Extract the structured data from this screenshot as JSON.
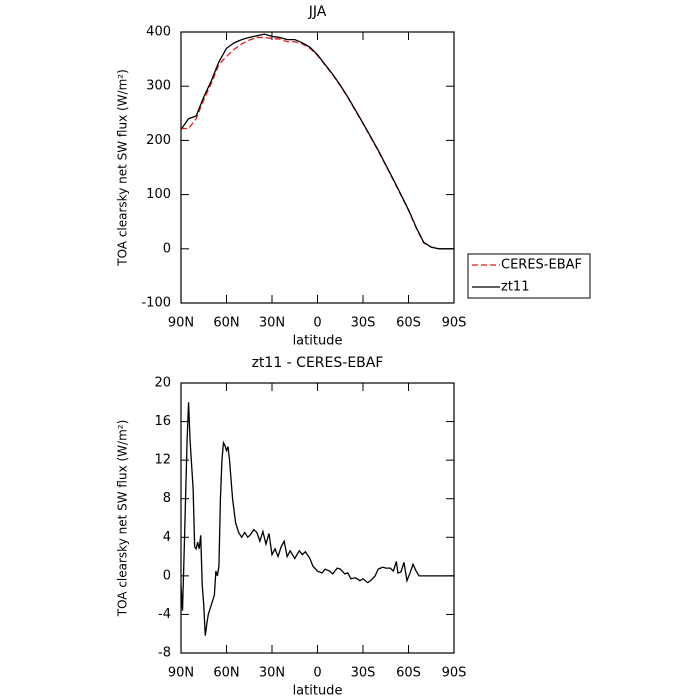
{
  "chart_data": [
    {
      "type": "line",
      "title": "JJA",
      "x_label": "latitude",
      "y_label": "TOA clearsky net SW flux (W/m²)",
      "x": [
        90,
        85,
        80,
        75,
        70,
        65,
        60,
        55,
        50,
        45,
        40,
        35,
        30,
        25,
        20,
        15,
        10,
        5,
        0,
        -5,
        -10,
        -15,
        -20,
        -25,
        -30,
        -35,
        -40,
        -45,
        -50,
        -55,
        -60,
        -65,
        -70,
        -75,
        -80,
        -85,
        -90
      ],
      "series": [
        {
          "name": "CERES-EBAF",
          "color": "#e8191e",
          "linestyle": "dashed",
          "values": [
            222,
            222,
            240,
            275,
            305,
            340,
            355,
            368,
            378,
            385,
            390,
            390,
            388,
            387,
            382,
            382,
            378,
            370,
            357,
            339,
            321,
            301,
            279,
            255,
            231,
            206,
            181,
            154,
            127,
            99,
            71,
            39,
            11,
            3,
            0,
            0,
            0
          ]
        },
        {
          "name": "zt11",
          "color": "#000000",
          "linestyle": "solid",
          "values": [
            220,
            240,
            245,
            280,
            310,
            345,
            370,
            380,
            386,
            390,
            393,
            396,
            392,
            390,
            386,
            386,
            380,
            372,
            358,
            340,
            322,
            302,
            280,
            256,
            232,
            207,
            182,
            155,
            128,
            100,
            72,
            40,
            12,
            3,
            0,
            0,
            0
          ]
        }
      ],
      "xlim": [
        90,
        -90
      ],
      "xticks": [
        {
          "value": 90,
          "label": "90N"
        },
        {
          "value": 60,
          "label": "60N"
        },
        {
          "value": 30,
          "label": "30N"
        },
        0,
        {
          "value": -30,
          "label": "30S"
        },
        {
          "value": -60,
          "label": "60S"
        },
        {
          "value": -90,
          "label": "90S"
        }
      ],
      "ylim": [
        -100,
        400
      ],
      "yticks": [
        -100,
        0,
        100,
        200,
        300,
        400
      ],
      "legend": "right"
    },
    {
      "type": "line",
      "title": "zt11 - CERES-EBAF",
      "x_label": "latitude",
      "y_label": "TOA clearsky net SW flux (W/m²)",
      "x": [
        90,
        89,
        88,
        86,
        85,
        84,
        82,
        81,
        80,
        79,
        78,
        77,
        76,
        75,
        74,
        73,
        72,
        70,
        68,
        67,
        66,
        65,
        64,
        63,
        62,
        61,
        60,
        59,
        58,
        56,
        54,
        52,
        50,
        48,
        46,
        44,
        42,
        40,
        38,
        36,
        34,
        32,
        30,
        28,
        26,
        24,
        22,
        20,
        18,
        15,
        12,
        10,
        8,
        5,
        3,
        0,
        -3,
        -5,
        -8,
        -10,
        -13,
        -15,
        -18,
        -20,
        -22,
        -25,
        -28,
        -30,
        -33,
        -35,
        -38,
        -40,
        -43,
        -45,
        -48,
        -50,
        -52,
        -53,
        -55,
        -57,
        -59,
        -61,
        -63,
        -65,
        -67,
        -70,
        -90
      ],
      "values": [
        -1,
        -3.6,
        2,
        14,
        18,
        14,
        9,
        3,
        2.8,
        3.5,
        2.8,
        4.2,
        -1,
        -3,
        -6.2,
        -5,
        -4,
        -3,
        -2,
        0.5,
        0,
        1,
        8,
        12,
        13.8,
        13.5,
        13,
        13.4,
        12,
        8,
        5.5,
        4.5,
        4,
        4.5,
        4,
        4.3,
        4.8,
        4.5,
        3.6,
        4.6,
        3.3,
        4.4,
        2.2,
        2.8,
        2,
        3,
        3.6,
        2,
        2.6,
        1.8,
        2.6,
        2.2,
        2.5,
        1.8,
        1,
        0.5,
        0.3,
        0.7,
        0.5,
        0.2,
        0.8,
        0.7,
        0.2,
        0.3,
        -0.3,
        -0.2,
        -0.5,
        -0.3,
        -0.7,
        -0.5,
        0,
        0.7,
        0.9,
        0.8,
        0.8,
        0.5,
        1.5,
        0.3,
        0.4,
        1.4,
        -0.5,
        0.3,
        1.2,
        0.5,
        0,
        0,
        0
      ],
      "color": "#000000",
      "xlim": [
        90,
        -90
      ],
      "xticks": [
        {
          "value": 90,
          "label": "90N"
        },
        {
          "value": 60,
          "label": "60N"
        },
        {
          "value": 30,
          "label": "30N"
        },
        0,
        {
          "value": -30,
          "label": "30S"
        },
        {
          "value": -60,
          "label": "60S"
        },
        {
          "value": -90,
          "label": "90S"
        }
      ],
      "ylim": [
        -8,
        20
      ],
      "yticks": [
        -8,
        -4,
        0,
        4,
        8,
        12,
        16,
        20
      ]
    }
  ]
}
